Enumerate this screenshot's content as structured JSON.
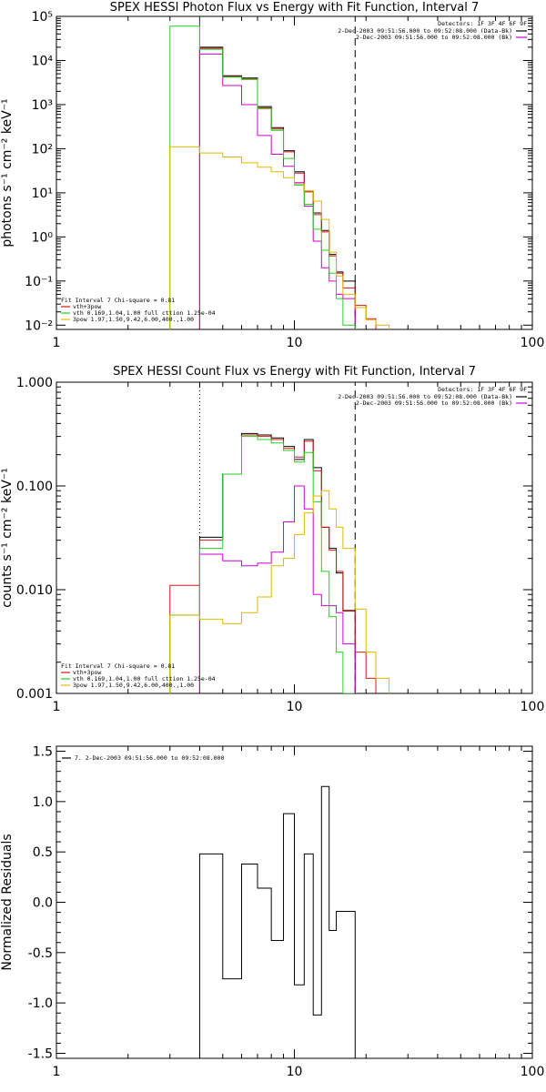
{
  "chart_data": [
    {
      "type": "line",
      "step": true,
      "xscale": "log",
      "yscale": "log",
      "title": "SPEX HESSI Photon Flux vs Energy with Fit Function, Interval 7",
      "ylabel": "photons s⁻¹ cm⁻² keV⁻¹",
      "xlim": [
        1,
        100
      ],
      "ylim": [
        0.008,
        100000
      ],
      "x_tick_labels": [
        "1",
        "10",
        "100"
      ],
      "y_tick_labels": [
        "10⁻²",
        "10⁻¹",
        "10⁰",
        "10¹",
        "10²",
        "10³",
        "10⁴",
        "10⁵"
      ],
      "detectors_label": "Detectors: 1F 3F 4F 6F 9F",
      "legend_right": [
        {
          "text": "2-Dec-2003 09:51:56.000 to 09:52:08.000 (Data-Bk)",
          "color": "#000000"
        },
        {
          "text": "2-Dec-2003 09:51:56.000 to 09:52:08.000 (Bk)",
          "color": "#d000d0"
        }
      ],
      "legend_left": [
        {
          "text": "Fit Interval  7   Chi-square = 0.81",
          "color": null
        },
        {
          "text": "vth+3pow",
          "color": "#d01818"
        },
        {
          "text": "vth 0.169,1.04,1.00  full cttion 1.25e-04",
          "color": "#20d020"
        },
        {
          "text": "3pow 1.97,1.50,9.42,6.00,400.,1.00",
          "color": "#e0b800"
        }
      ],
      "vlines": [
        {
          "x": 4.0,
          "style": "solid",
          "color": "#8000c0"
        },
        {
          "x": 18.0,
          "style": "dashed",
          "color": "#000000"
        }
      ],
      "edges": [
        3,
        4,
        5,
        6,
        7,
        8,
        9,
        10,
        11,
        12,
        13,
        14,
        15,
        16,
        18,
        20,
        22,
        25
      ],
      "series": [
        {
          "name": "Data-Bk",
          "color": "#000000",
          "start_bin": 1,
          "values": [
            20000,
            4500,
            4000,
            900,
            300,
            90,
            30,
            11,
            3.5,
            1.4,
            0.4,
            0.16,
            0.1
          ]
        },
        {
          "name": "vth+3pow",
          "color": "#d01818",
          "start_bin": 1,
          "values": [
            19000,
            4300,
            3800,
            850,
            280,
            85,
            28,
            10.5,
            3.2,
            1.3,
            0.37,
            0.15,
            0.07,
            0.028,
            0.014
          ]
        },
        {
          "name": "Bk",
          "color": "#d000d0",
          "start_bin": 1,
          "values": [
            14000,
            2700,
            1000,
            200,
            75,
            40,
            17,
            5,
            0.8,
            0.2,
            0.1,
            0.05,
            0.04
          ]
        },
        {
          "name": "vth",
          "color": "#20d020",
          "start_bin": 0,
          "values": [
            60000,
            18000,
            4200,
            3700,
            800,
            260,
            60,
            15,
            5.5,
            1.5,
            0.5,
            0.15,
            0.04,
            0.01
          ]
        },
        {
          "name": "3pow",
          "color": "#e0b800",
          "start_bin": 0,
          "values": [
            110,
            80,
            65,
            48,
            38,
            30,
            22,
            16,
            11,
            6.5,
            2.5,
            0.45,
            0.13,
            0.05,
            0.025,
            0.013,
            0.01
          ]
        }
      ]
    },
    {
      "type": "line",
      "step": true,
      "xscale": "log",
      "yscale": "log",
      "title": "SPEX HESSI Count Flux vs Energy with Fit Function, Interval 7",
      "ylabel": "counts s⁻¹ cm⁻² keV⁻¹",
      "xlim": [
        1,
        100
      ],
      "ylim": [
        0.001,
        1.0
      ],
      "x_tick_labels": [
        "1",
        "10",
        "100"
      ],
      "y_tick_labels": [
        "0.001",
        "0.010",
        "0.100",
        "1.000"
      ],
      "detectors_label": "Detectors: 1F 3F 4F 6F 9F",
      "legend_right": [
        {
          "text": "2-Dec-2003 09:51:56.000 to 09:52:08.000 (Data-Bk)",
          "color": "#000000"
        },
        {
          "text": "2-Dec-2003 09:51:56.000 to 09:52:08.000 (Bk)",
          "color": "#d000d0"
        }
      ],
      "legend_left": [
        {
          "text": "Fit Interval  7   Chi-square = 0.81",
          "color": null
        },
        {
          "text": "vth+3pow",
          "color": "#d01818"
        },
        {
          "text": "vth 0.169,1.04,1.00  full cttion 1.25e-04",
          "color": "#20d020"
        },
        {
          "text": "3pow 1.97,1.50,9.42,6.00,400.,1.00",
          "color": "#e0b800"
        }
      ],
      "vlines": [
        {
          "x": 4.0,
          "style": "dotted",
          "color": "#000000"
        },
        {
          "x": 4.0,
          "style": "solid",
          "color": "#8000c0",
          "from_y": 0.001,
          "to_y": 0.02
        },
        {
          "x": 18.0,
          "style": "dashed",
          "color": "#000000"
        }
      ],
      "edges": [
        3,
        4,
        5,
        6,
        7,
        8,
        9,
        10,
        11,
        12,
        13,
        14,
        15,
        16,
        18,
        20,
        22,
        25
      ],
      "series": [
        {
          "name": "Data-Bk",
          "color": "#000000",
          "start_bin": 1,
          "values": [
            0.032,
            0.13,
            0.32,
            0.31,
            0.29,
            0.24,
            0.18,
            0.28,
            0.15,
            0.04,
            0.025,
            0.0145,
            0.0063
          ]
        },
        {
          "name": "vth+3pow",
          "color": "#d01818",
          "start_bin": 0,
          "values": [
            0.011,
            0.03,
            0.13,
            0.31,
            0.3,
            0.28,
            0.23,
            0.19,
            0.27,
            0.14,
            0.04,
            0.024,
            0.015,
            0.0062,
            0.0025,
            0.0014
          ]
        },
        {
          "name": "Bk",
          "color": "#d000d0",
          "start_bin": 1,
          "values": [
            0.022,
            0.019,
            0.017,
            0.018,
            0.023,
            0.045,
            0.1,
            0.06,
            0.009,
            0.007,
            0.007,
            0.006,
            0.003
          ]
        },
        {
          "name": "vth",
          "color": "#20d020",
          "start_bin": 0,
          "values": [
            0.0057,
            0.025,
            0.13,
            0.3,
            0.28,
            0.26,
            0.22,
            0.17,
            0.21,
            0.07,
            0.015,
            0.0055,
            0.0025,
            0.001
          ]
        },
        {
          "name": "3pow",
          "color": "#e0b800",
          "start_bin": 0,
          "values": [
            0.0057,
            0.0052,
            0.0047,
            0.006,
            0.0085,
            0.017,
            0.02,
            0.034,
            0.055,
            0.08,
            0.09,
            0.06,
            0.04,
            0.025,
            0.0065,
            0.0025,
            0.0014
          ]
        }
      ]
    },
    {
      "type": "line",
      "step": true,
      "xscale": "log",
      "yscale": "linear",
      "title": "",
      "ylabel": "Normalized Residuals",
      "xlim": [
        1,
        100
      ],
      "ylim": [
        -1.55,
        1.55
      ],
      "x_tick_labels": [
        "1",
        "10",
        "100"
      ],
      "y_tick_labels": [
        "-1.5",
        "-1.0",
        "-0.5",
        "0.0",
        "0.5",
        "1.0",
        "1.5"
      ],
      "legend_left": [
        {
          "text": "7. 2-Dec-2003 09:51:56.000 to 09:52:08.000",
          "color": "#000000"
        }
      ],
      "edges": [
        4,
        5,
        6,
        7,
        8,
        9,
        10,
        11,
        12,
        13,
        14,
        15,
        16,
        18
      ],
      "series": [
        {
          "name": "7. 2-Dec-2003 09:51:56.000 to 09:52:08.000",
          "color": "#000000",
          "values": [
            0.48,
            -0.76,
            0.38,
            0.14,
            -0.38,
            0.88,
            -0.82,
            0.48,
            -1.12,
            1.15,
            -0.28,
            -0.09,
            -0.09
          ]
        }
      ]
    }
  ]
}
